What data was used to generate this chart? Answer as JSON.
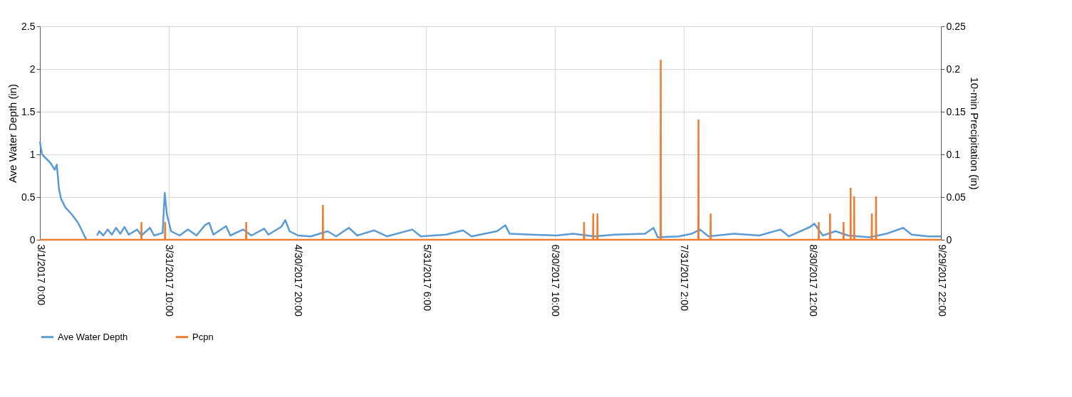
{
  "chart_data": {
    "type": "line",
    "xlabel": null,
    "ylabel": "Ave Water Depth (in)",
    "y2label": "10-min Precipitation (in)",
    "xlim": [
      "2017-03-01T00:00",
      "2017-09-29T22:00"
    ],
    "xticks": [
      {
        "value": "2017-03-01T00:00",
        "label": "3/1/2017 0:00"
      },
      {
        "value": "2017-03-31T10:00",
        "label": "3/31/2017 10:00"
      },
      {
        "value": "2017-04-30T20:00",
        "label": "4/30/2017 20:00"
      },
      {
        "value": "2017-05-31T06:00",
        "label": "5/31/2017 6:00"
      },
      {
        "value": "2017-06-30T16:00",
        "label": "6/30/2017 16:00"
      },
      {
        "value": "2017-07-31T02:00",
        "label": "7/31/2017 2:00"
      },
      {
        "value": "2017-08-30T12:00",
        "label": "8/30/2017 12:00"
      },
      {
        "value": "2017-09-29T22:00",
        "label": "9/29/2017 22:00"
      }
    ],
    "ylim": [
      0,
      2.5
    ],
    "yticks": [
      0,
      0.5,
      1,
      1.5,
      2,
      2.5
    ],
    "y2lim": [
      0,
      0.25
    ],
    "y2ticks": [
      0,
      0.05,
      0.1,
      0.15,
      0.2,
      0.25
    ],
    "grid": true,
    "legend": "bottom",
    "line_style": "solid",
    "marker": "none",
    "series": [
      {
        "name": "Ave Water Depth",
        "color": "#5b9bd5",
        "x": [
          "2017-03-01T00:00",
          "2017-03-01T12:00",
          "2017-03-02T12:00",
          "2017-03-03T12:00",
          "2017-03-04T12:00",
          "2017-03-05T00:00",
          "2017-03-05T12:00",
          "2017-03-06T00:00",
          "2017-03-07T00:00",
          "2017-03-08T12:00",
          "2017-03-10T00:00",
          "2017-03-11T00:00",
          "2017-03-12T00:00",
          "2017-03-13T00:00",
          "2017-03-14T12:00",
          "2017-03-15",
          "2017-03-16",
          "2017-03-17",
          "2017-03-18",
          "2017-03-19",
          "2017-03-20",
          "2017-03-21",
          "2017-03-22",
          "2017-03-24",
          "2017-03-25",
          "2017-03-27",
          "2017-03-28",
          "2017-03-30T00:00",
          "2017-03-30T12:00",
          "2017-03-31",
          "2017-04-01",
          "2017-04-03",
          "2017-04-05",
          "2017-04-07",
          "2017-04-09",
          "2017-04-10",
          "2017-04-11",
          "2017-04-14",
          "2017-04-15",
          "2017-04-18",
          "2017-04-20",
          "2017-04-23",
          "2017-04-24",
          "2017-04-27",
          "2017-04-28",
          "2017-04-29",
          "2017-05-01",
          "2017-05-04",
          "2017-05-08",
          "2017-05-10",
          "2017-05-13",
          "2017-05-15",
          "2017-05-19",
          "2017-05-22",
          "2017-05-28",
          "2017-05-30",
          "2017-06-05",
          "2017-06-09",
          "2017-06-11",
          "2017-06-17",
          "2017-06-19",
          "2017-06-20",
          "2017-06-25",
          "2017-07-01",
          "2017-07-05",
          "2017-07-10",
          "2017-07-15",
          "2017-07-22",
          "2017-07-24",
          "2017-07-25",
          "2017-07-30",
          "2017-08-02",
          "2017-08-04",
          "2017-08-06",
          "2017-08-12",
          "2017-08-18",
          "2017-08-23",
          "2017-08-25",
          "2017-08-30",
          "2017-08-31",
          "2017-09-02",
          "2017-09-05",
          "2017-09-08",
          "2017-09-13",
          "2017-09-17",
          "2017-09-21",
          "2017-09-23",
          "2017-09-27",
          "2017-09-29T22:00"
        ],
        "values": [
          1.15,
          1.0,
          0.95,
          0.9,
          0.82,
          0.88,
          0.6,
          0.48,
          0.38,
          0.3,
          0.2,
          0.1,
          0,
          null,
          0.05,
          0.1,
          0.05,
          0.12,
          0.06,
          0.14,
          0.07,
          0.15,
          0.06,
          0.12,
          0.05,
          0.14,
          0.05,
          0.08,
          0.55,
          0.3,
          0.1,
          0.05,
          0.12,
          0.05,
          0.17,
          0.2,
          0.06,
          0.16,
          0.05,
          0.12,
          0.05,
          0.13,
          0.06,
          0.15,
          0.23,
          0.1,
          0.05,
          0.04,
          0.1,
          0.04,
          0.14,
          0.05,
          0.11,
          0.04,
          0.12,
          0.04,
          0.06,
          0.11,
          0.04,
          0.1,
          0.17,
          0.07,
          0.06,
          0.05,
          0.07,
          0.04,
          0.06,
          0.07,
          0.14,
          0.03,
          0.04,
          0.07,
          0.12,
          0.04,
          0.07,
          0.05,
          0.12,
          0.04,
          0.15,
          0.19,
          0.05,
          0.1,
          0.05,
          0.03,
          0.07,
          0.14,
          0.06,
          0.04,
          0.04
        ]
      },
      {
        "name": "Pcpn",
        "color": "#ed7d31",
        "axis": "y2",
        "x": [
          "2017-03-01T00:00",
          "2017-03-24T23:00",
          "2017-03-25T00:00",
          "2017-03-25T01:00",
          "2017-03-30T13:00",
          "2017-03-30T14:00",
          "2017-03-30T15:00",
          "2017-04-18T17:00",
          "2017-04-18T18:00",
          "2017-04-18T19:00",
          "2017-05-06T20:00",
          "2017-05-06T21:00",
          "2017-05-06T22:00",
          "2017-07-07T13:00",
          "2017-07-07T14:00",
          "2017-07-07T15:00",
          "2017-07-09T17:00",
          "2017-07-09T18:00",
          "2017-07-09T19:00",
          "2017-07-10T17:00",
          "2017-07-10T18:00",
          "2017-07-10T19:00",
          "2017-07-25T16:00",
          "2017-07-25T17:00",
          "2017-07-25T18:00",
          "2017-08-03T14:00",
          "2017-08-03T15:00",
          "2017-08-03T16:00",
          "2017-08-06T11:00",
          "2017-08-06T12:00",
          "2017-08-06T13:00",
          "2017-09-01T00:00",
          "2017-09-01T01:00",
          "2017-09-01T02:00",
          "2017-09-03T16:00",
          "2017-09-03T17:00",
          "2017-09-03T18:00",
          "2017-09-06T21:00",
          "2017-09-06T22:00",
          "2017-09-06T23:00",
          "2017-09-08T13:00",
          "2017-09-08T14:00",
          "2017-09-08T15:00",
          "2017-09-09T09:00",
          "2017-09-09T10:00",
          "2017-09-09T11:00",
          "2017-09-13T13:00",
          "2017-09-13T14:00",
          "2017-09-13T15:00",
          "2017-09-14T13:00",
          "2017-09-14T14:00",
          "2017-09-14T15:00",
          "2017-09-29T22:00"
        ],
        "values": [
          0,
          0,
          0.02,
          0,
          0,
          0.02,
          0,
          0,
          0.02,
          0,
          0,
          0.04,
          0,
          0,
          0.02,
          0,
          0,
          0.03,
          0,
          0,
          0.03,
          0,
          0,
          0.21,
          0,
          0,
          0.14,
          0,
          0,
          0.03,
          0,
          0,
          0.02,
          0,
          0,
          0.03,
          0,
          0,
          0.02,
          0,
          0,
          0.06,
          0,
          0,
          0.05,
          0,
          0,
          0.03,
          0,
          0,
          0.05,
          0,
          0
        ]
      }
    ]
  }
}
